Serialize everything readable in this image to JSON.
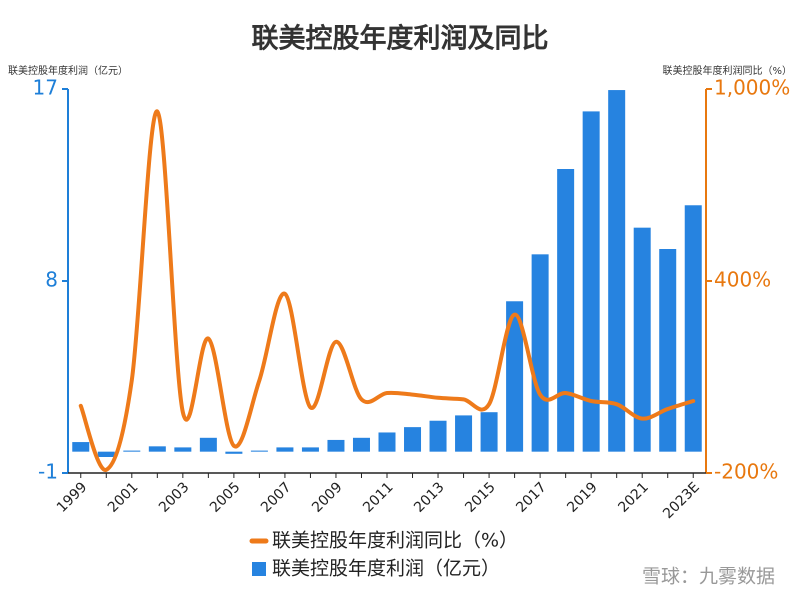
{
  "chart_data": {
    "type": "bar-line",
    "title": "联美控股年度利润及同比",
    "y_label": "联美控股年度利润（亿元）",
    "y2_label": "联美控股年度利润同比（%）",
    "watermark": "雪球：九雾数据",
    "categories": [
      "1999",
      null,
      "2001",
      null,
      "2003",
      null,
      "2005",
      null,
      "2007",
      null,
      "2009",
      null,
      "2011",
      null,
      "2013",
      null,
      "2015",
      null,
      "2017",
      null,
      "2019",
      null,
      "2021",
      null,
      "2023E"
    ],
    "series": [
      {
        "name": "联美控股年度利润同比（%）",
        "type": "line",
        "axis": "y2",
        "color": "#ee7a1a",
        "values": [
          10,
          -190,
          90,
          930,
          -10,
          220,
          -115,
          90,
          360,
          5,
          210,
          30,
          50,
          45,
          35,
          30,
          15,
          295,
          45,
          50,
          25,
          15,
          -30,
          0,
          25
        ]
      },
      {
        "name": "联美控股年度利润（亿元）",
        "type": "bar",
        "axis": "y",
        "color": "#2683e0",
        "values": [
          0.45,
          -0.25,
          0.05,
          0.25,
          0.2,
          0.65,
          -0.1,
          0.05,
          0.2,
          0.2,
          0.55,
          0.65,
          0.9,
          1.15,
          1.45,
          1.7,
          1.85,
          7.05,
          9.25,
          13.25,
          15.95,
          16.95,
          10.5,
          9.5,
          11.55
        ]
      }
    ],
    "ylim": [
      -1,
      17
    ],
    "yticks": [
      -1,
      8,
      17
    ],
    "y_color": "#1e7fd8",
    "y2lim": [
      -200,
      1000
    ],
    "y2ticks": [
      {
        "value": -200,
        "label": "-200%"
      },
      {
        "value": 400,
        "label": "400%"
      },
      {
        "value": 1000,
        "label": "1,000%"
      }
    ],
    "y2_color": "#e8780f"
  }
}
